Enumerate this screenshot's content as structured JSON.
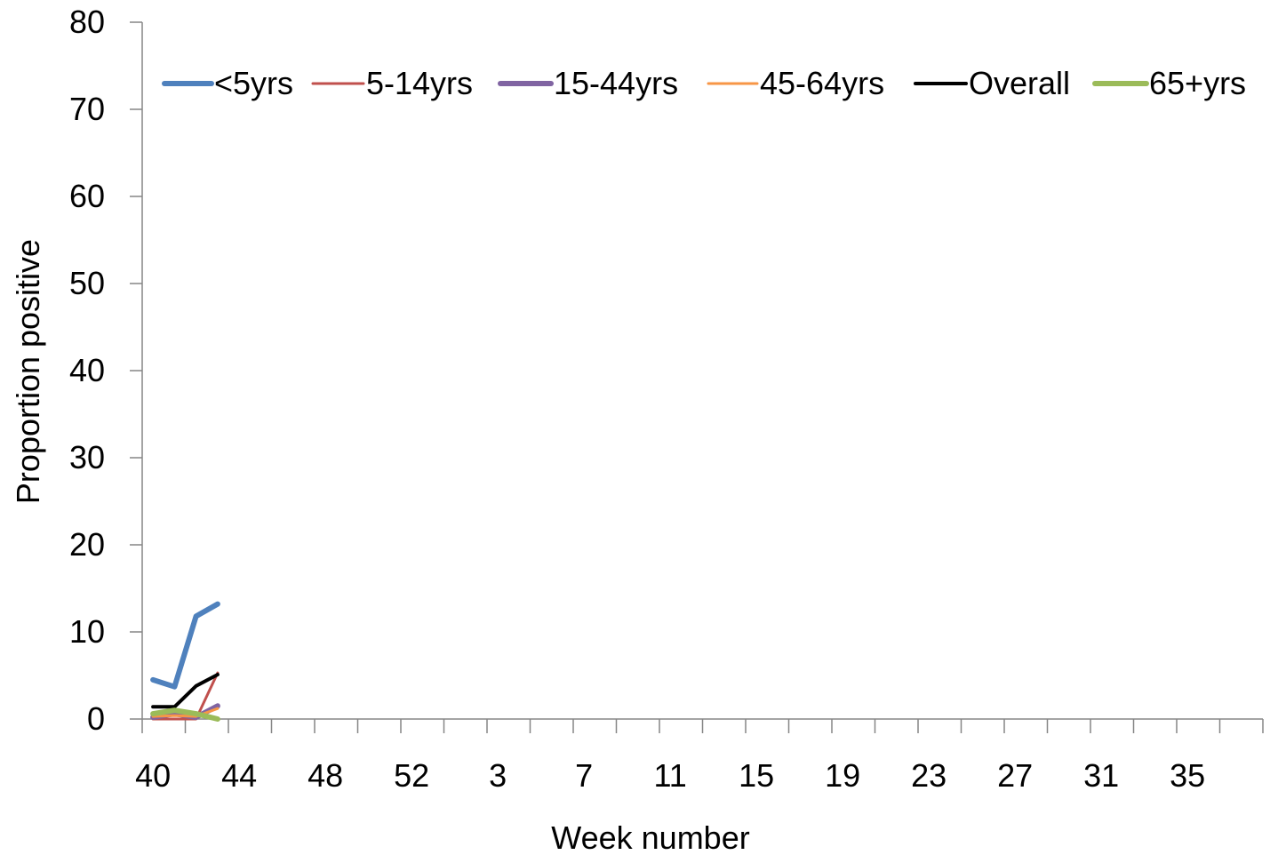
{
  "chart_data": {
    "type": "line",
    "xlabel": "Week number",
    "ylabel": "Proportion positive",
    "ylim": [
      0,
      80
    ],
    "yticks": [
      0,
      10,
      20,
      30,
      40,
      50,
      60,
      70,
      80
    ],
    "weeks": [
      40,
      41,
      42,
      43,
      44,
      45,
      46,
      47,
      48,
      49,
      50,
      51,
      52,
      1,
      2,
      3,
      4,
      5,
      6,
      7,
      8,
      9,
      10,
      11,
      12,
      13,
      14,
      15,
      16,
      17,
      18,
      19,
      20,
      21,
      22,
      23,
      24,
      25,
      26,
      27,
      28,
      29,
      30,
      31,
      32,
      33,
      34,
      35,
      36,
      37,
      38,
      39
    ],
    "x_tick_labels": [
      "40",
      "44",
      "48",
      "52",
      "3",
      "7",
      "11",
      "15",
      "19",
      "23",
      "27",
      "31",
      "35"
    ],
    "grid": false,
    "legend_position": "top",
    "series": [
      {
        "name": "<5yrs",
        "color": "#4F81BD",
        "values": [
          4.5,
          3.7,
          11.8,
          13.2
        ]
      },
      {
        "name": "5-14yrs",
        "color": "#C0504D",
        "values": [
          0,
          0,
          0,
          5.3
        ]
      },
      {
        "name": "15-44yrs",
        "color": "#8064A2",
        "values": [
          0.2,
          0.6,
          0.2,
          1.5
        ]
      },
      {
        "name": "45-64yrs",
        "color": "#F79646",
        "values": [
          0.3,
          0.4,
          0.3,
          1.2
        ]
      },
      {
        "name": "Overall",
        "color": "#000000",
        "values": [
          1.4,
          1.4,
          3.8,
          5.1
        ]
      },
      {
        "name": "65+yrs",
        "color": "#9BBB59",
        "values": [
          0.6,
          1.0,
          0.6,
          0
        ]
      }
    ]
  }
}
